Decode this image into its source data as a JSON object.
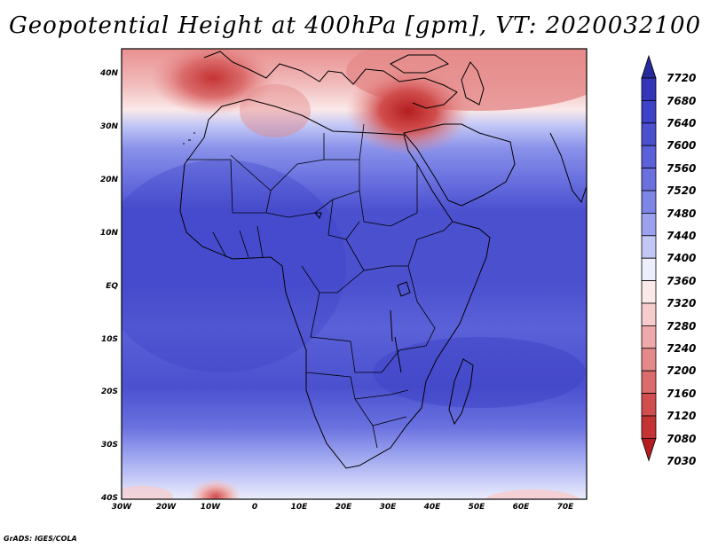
{
  "title": "Geopotential Height at 400hPa [gpm], VT: 2020032100",
  "credit": "GrADS: IGES/COLA",
  "lat_labels": [
    "40N",
    "30N",
    "20N",
    "10N",
    "EQ",
    "10S",
    "20S",
    "30S",
    "40S"
  ],
  "lon_labels": [
    "30W",
    "20W",
    "10W",
    "0",
    "10E",
    "20E",
    "30E",
    "40E",
    "50E",
    "60E",
    "70E"
  ],
  "colorbar": {
    "labels": [
      "7720",
      "7680",
      "7640",
      "7600",
      "7560",
      "7520",
      "7480",
      "7440",
      "7400",
      "7360",
      "7320",
      "7280",
      "7240",
      "7200",
      "7160",
      "7120",
      "7080",
      "7030"
    ],
    "colors": [
      "#262a9a",
      "#3336b8",
      "#3d42c6",
      "#4b50cf",
      "#5b61d8",
      "#6a71df",
      "#7d85e6",
      "#9aa2ee",
      "#c2c7f6",
      "#eceefc",
      "#fbe9e9",
      "#f6cccc",
      "#eeaaaa",
      "#e58a8a",
      "#db6c6c",
      "#d14e4e",
      "#c53434",
      "#b51e1e"
    ]
  },
  "chart_data": {
    "type": "heatmap",
    "title": "Geopotential Height at 400hPa [gpm], VT: 2020032100",
    "variable": "geopotential height",
    "level": "400hPa",
    "units": "gpm",
    "valid_time": "2020032100",
    "lon_range": [
      -30,
      75
    ],
    "lat_range": [
      -40,
      45
    ],
    "contour_levels": [
      7030,
      7080,
      7120,
      7160,
      7200,
      7240,
      7280,
      7320,
      7360,
      7400,
      7440,
      7480,
      7520,
      7560,
      7600,
      7640,
      7680,
      7720
    ],
    "features": [
      {
        "location": "western Mediterranean",
        "lon": -10,
        "lat": 39,
        "approx_value": 7120
      },
      {
        "location": "Middle East",
        "lon": 35,
        "lat": 32,
        "approx_value": 7080
      },
      {
        "location": "equatorial belt",
        "lon": 10,
        "lat": 0,
        "approx_value": 7620
      },
      {
        "location": "South Atlantic near 10W 40S",
        "lon": -10,
        "lat": -40,
        "approx_value": 7280
      }
    ]
  }
}
